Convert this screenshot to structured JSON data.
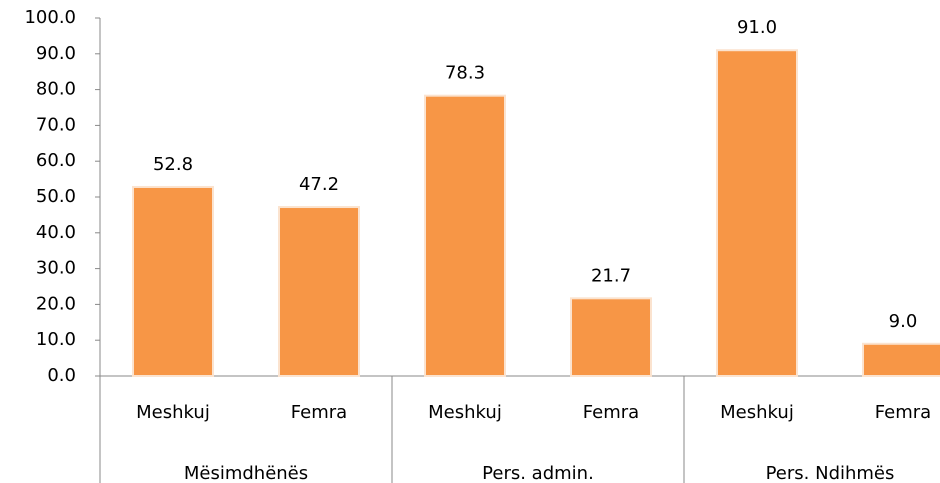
{
  "chart_data": {
    "type": "bar",
    "categories": [
      "Meshkuj",
      "Femra",
      "Meshkuj",
      "Femra",
      "Meshkuj",
      "Femra"
    ],
    "groups": [
      "Mësimdhënës",
      "Pers. admin.",
      "Pers. Ndihmës"
    ],
    "values": [
      52.8,
      47.2,
      78.3,
      21.7,
      91.0,
      9.0
    ],
    "value_labels": [
      "52.8",
      "47.2",
      "78.3",
      "21.7",
      "91.0",
      "9.0"
    ],
    "color": "#f79646",
    "ylim": [
      0,
      100
    ],
    "yticks": [
      {
        "value": 0,
        "label": "0.0"
      },
      {
        "value": 10,
        "label": "10.0"
      },
      {
        "value": 20,
        "label": "20.0"
      },
      {
        "value": 30,
        "label": "30.0"
      },
      {
        "value": 40,
        "label": "40.0"
      },
      {
        "value": 50,
        "label": "50.0"
      },
      {
        "value": 60,
        "label": "60.0"
      },
      {
        "value": 70,
        "label": "70.0"
      },
      {
        "value": 80,
        "label": "80.0"
      },
      {
        "value": 90,
        "label": "90.0"
      },
      {
        "value": 100,
        "label": "100.0"
      }
    ],
    "grid": false
  }
}
